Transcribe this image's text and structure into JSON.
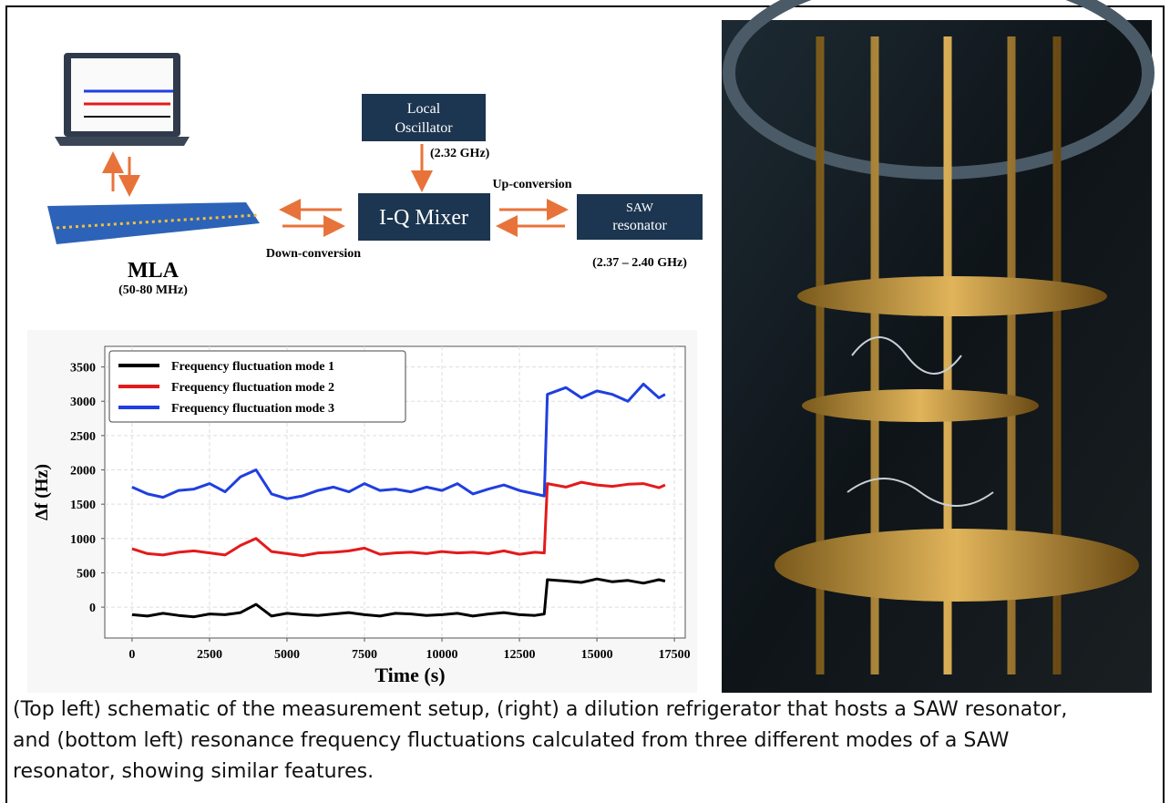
{
  "schematic": {
    "local_oscillator": [
      "Local",
      "Oscillator"
    ],
    "lo_frequency": "(2.32 GHz)",
    "up_conversion": "Up-conversion",
    "mixer": "I-Q Mixer",
    "saw": [
      "SAW",
      "resonator"
    ],
    "saw_frequency": "(2.37 – 2.40 GHz)",
    "down_conversion": "Down-conversion",
    "mla": "MLA",
    "mla_frequency": "(50-80 MHz)"
  },
  "chart_data": {
    "type": "line",
    "xlabel": "Time (s)",
    "ylabel": "Δf (Hz)",
    "x": [
      0,
      500,
      1000,
      1500,
      2000,
      2500,
      3000,
      3500,
      4000,
      4500,
      5000,
      5500,
      6000,
      6500,
      7000,
      7500,
      8000,
      8500,
      9000,
      9500,
      10000,
      10500,
      11000,
      11500,
      12000,
      12500,
      13000,
      13300,
      13400,
      14000,
      14500,
      15000,
      15500,
      16000,
      16500,
      17000,
      17200
    ],
    "series": [
      {
        "name": "Frequency fluctuation mode 1",
        "color": "#000000",
        "values": [
          -110,
          -130,
          -90,
          -120,
          -140,
          -100,
          -110,
          -80,
          40,
          -130,
          -90,
          -110,
          -120,
          -100,
          -80,
          -110,
          -130,
          -90,
          -100,
          -120,
          -110,
          -90,
          -130,
          -100,
          -80,
          -110,
          -120,
          -100,
          400,
          380,
          360,
          410,
          370,
          390,
          350,
          400,
          380
        ]
      },
      {
        "name": "Frequency fluctuation mode 2",
        "color": "#e41a1c",
        "values": [
          850,
          780,
          760,
          800,
          820,
          790,
          760,
          900,
          1000,
          810,
          780,
          750,
          790,
          800,
          820,
          860,
          770,
          790,
          800,
          780,
          810,
          790,
          800,
          780,
          820,
          770,
          800,
          790,
          1800,
          1750,
          1820,
          1780,
          1760,
          1790,
          1800,
          1740,
          1780
        ]
      },
      {
        "name": "Frequency fluctuation mode 3",
        "color": "#1f3fe0",
        "values": [
          1750,
          1650,
          1600,
          1700,
          1720,
          1800,
          1680,
          1900,
          2000,
          1650,
          1580,
          1620,
          1700,
          1750,
          1680,
          1800,
          1700,
          1720,
          1680,
          1750,
          1700,
          1800,
          1650,
          1720,
          1780,
          1700,
          1650,
          1620,
          3100,
          3200,
          3050,
          3150,
          3100,
          3000,
          3250,
          3050,
          3100
        ]
      }
    ],
    "xlim": [
      -880,
      17850
    ],
    "ylim": [
      -450,
      3800
    ],
    "xticks": [
      0,
      2500,
      5000,
      7500,
      10000,
      12500,
      15000,
      17500
    ],
    "yticks": [
      0,
      500,
      1000,
      1500,
      2000,
      2500,
      3000,
      3500
    ],
    "grid": true,
    "legend": "upper-left"
  },
  "caption": "(Top left) schematic of the measurement setup, (right) a dilution refrigerator that hosts a SAW resonator, and (bottom left) resonance frequency fluctuations calculated from three different modes of a SAW resonator, showing similar features."
}
